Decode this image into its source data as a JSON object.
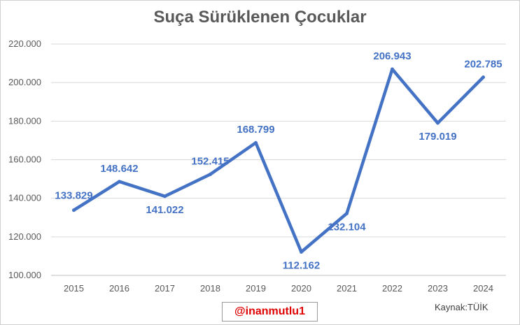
{
  "chart_data": {
    "type": "line",
    "title": "Suça Sürüklenen Çocuklar",
    "xlabel": "",
    "ylabel": "",
    "categories": [
      "2015",
      "2016",
      "2017",
      "2018",
      "2019",
      "2020",
      "2021",
      "2022",
      "2023",
      "2024"
    ],
    "values": [
      133829,
      148642,
      141022,
      152415,
      168799,
      112162,
      132104,
      206943,
      179019,
      202785
    ],
    "data_labels": [
      "133.829",
      "148.642",
      "141.022",
      "152.415",
      "168.799",
      "112.162",
      "132.104",
      "206.943",
      "179.019",
      "202.785"
    ],
    "ylim": [
      100000,
      220000
    ],
    "yticks": [
      100000,
      120000,
      140000,
      160000,
      180000,
      200000,
      220000
    ],
    "ytick_labels": [
      "100.000",
      "120.000",
      "140.000",
      "160.000",
      "180.000",
      "200.000",
      "220.000"
    ],
    "grid": true,
    "legend": "none",
    "color": "#4472c4"
  },
  "footer": {
    "watermark": "@inanmutlu1",
    "source": "Kaynak:TÜİK"
  }
}
